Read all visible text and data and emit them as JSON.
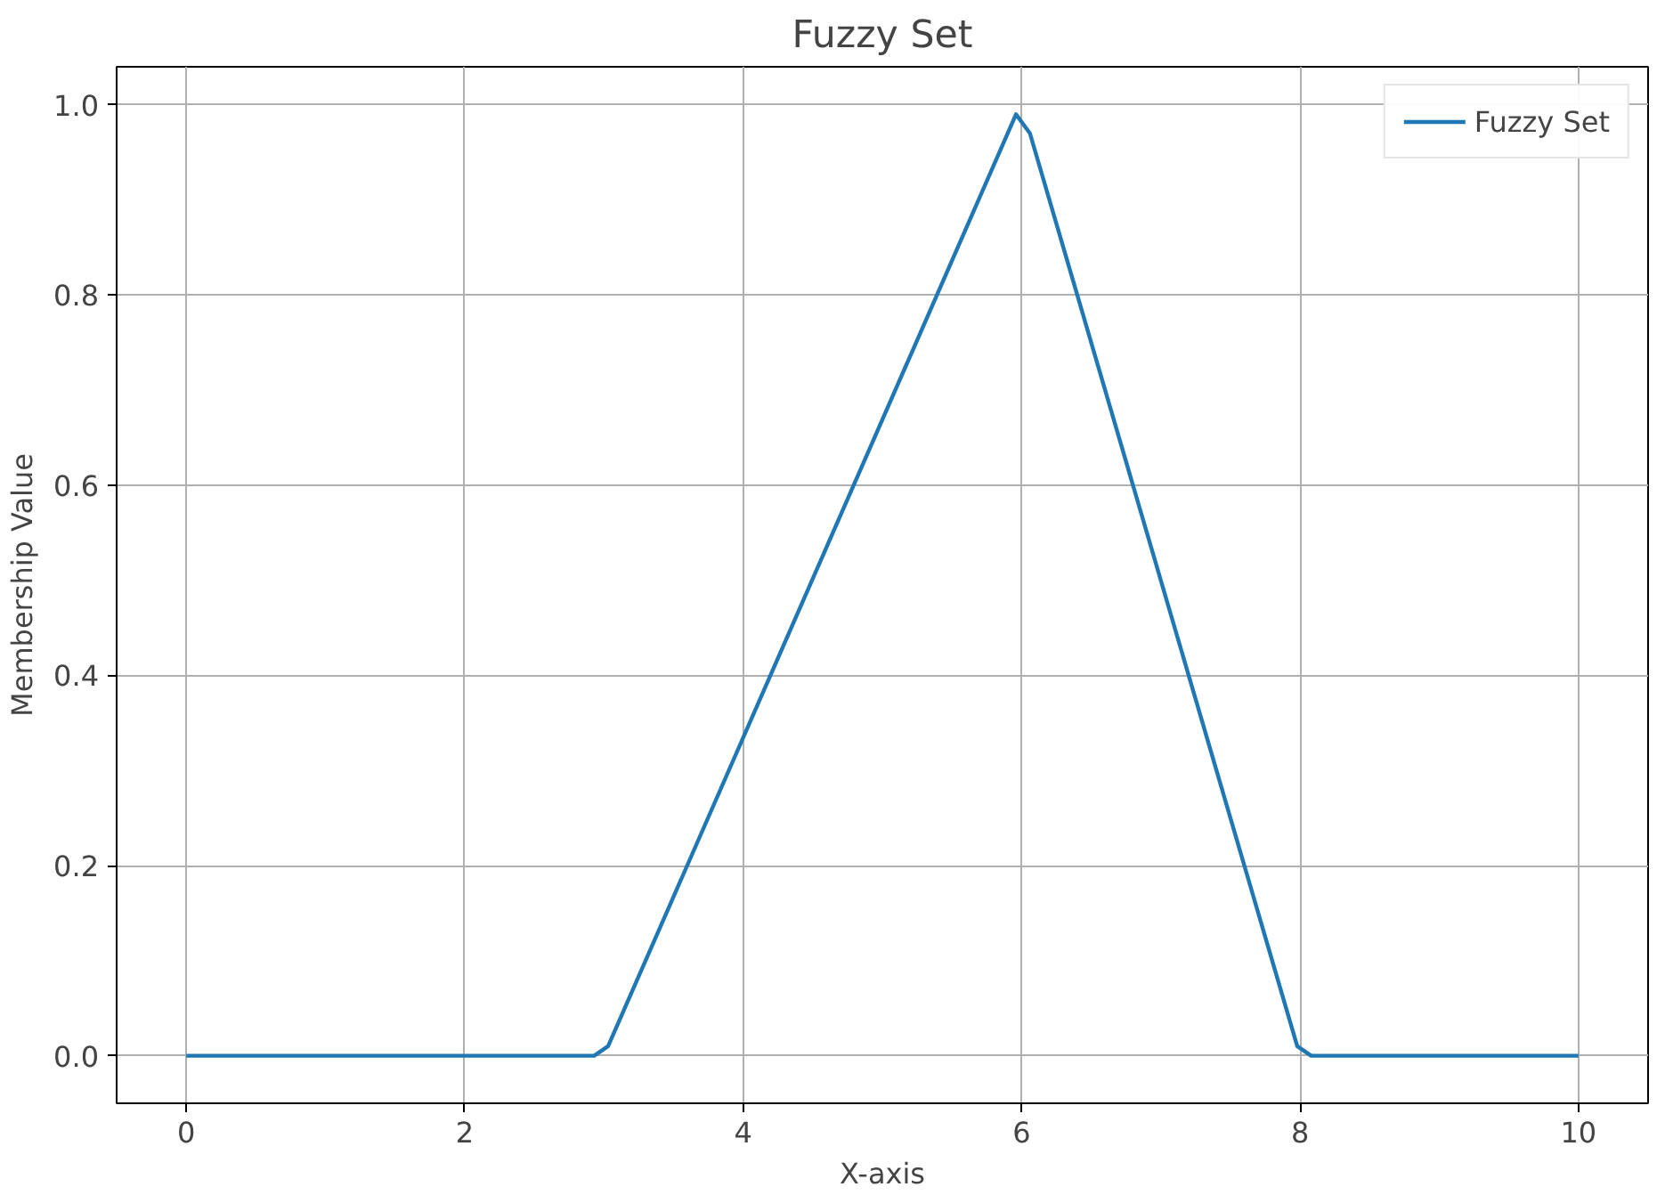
{
  "chart_data": {
    "type": "line",
    "title": "Fuzzy Set",
    "xlabel": "X-axis",
    "ylabel": "Membership Value",
    "x": [
      0,
      2.93,
      3.03,
      5.96,
      6.06,
      7.98,
      8.08,
      10
    ],
    "series": [
      {
        "name": "Fuzzy Set",
        "color": "#1f77b4",
        "values": [
          0,
          0,
          0.01,
          0.99,
          0.97,
          0.01,
          0,
          0
        ]
      }
    ],
    "xlim": [
      -0.5,
      10.5
    ],
    "ylim": [
      -0.05,
      1.04
    ],
    "xticks": [
      0,
      2,
      4,
      6,
      8,
      10
    ],
    "yticks": [
      {
        "value": 0,
        "label": "0.0"
      },
      {
        "value": 0.2,
        "label": "0.2"
      },
      {
        "value": 0.4,
        "label": "0.4"
      },
      {
        "value": 0.6,
        "label": "0.6"
      },
      {
        "value": 0.8,
        "label": "0.8"
      },
      {
        "value": 1,
        "label": "1.0"
      }
    ],
    "grid": true,
    "legend": "top right",
    "line_style": "solid",
    "marker": "none"
  }
}
